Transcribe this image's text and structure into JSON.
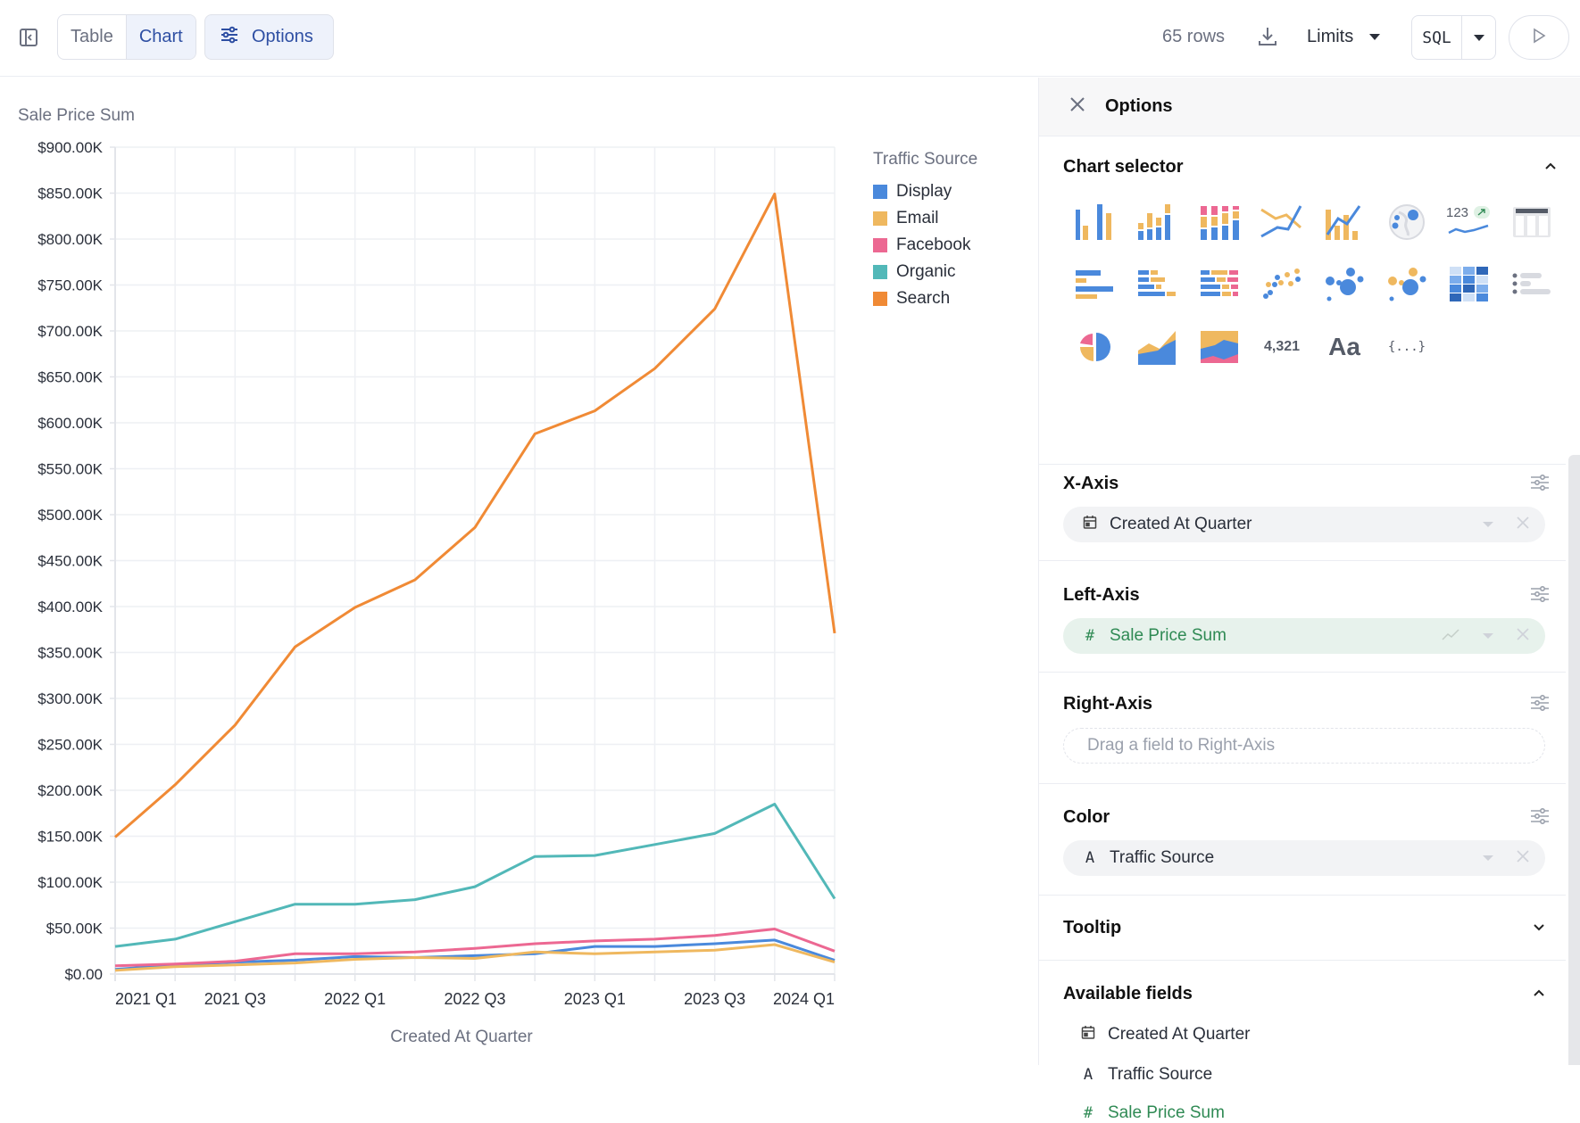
{
  "toolbar": {
    "view_tabs": [
      "Table",
      "Chart"
    ],
    "active_view": "Chart",
    "options_label": "Options",
    "row_count": "65 rows",
    "limits_label": "Limits",
    "sql_label": "SQL",
    "icons": {
      "sidebar": "sidebar-collapse-icon",
      "options": "sliders-icon",
      "download": "download-icon",
      "run": "play-icon"
    }
  },
  "legend": {
    "title": "Traffic Source",
    "items": [
      {
        "label": "Display",
        "color": "#4a89dc"
      },
      {
        "label": "Email",
        "color": "#efb85f"
      },
      {
        "label": "Facebook",
        "color": "#ec6892"
      },
      {
        "label": "Organic",
        "color": "#52b8b8"
      },
      {
        "label": "Search",
        "color": "#f08a35"
      }
    ]
  },
  "chart_data": {
    "type": "line",
    "title": "",
    "xlabel": "Created At Quarter",
    "ylabel": "Sale Price Sum",
    "x": [
      "2021 Q1",
      "2021 Q2",
      "2021 Q3",
      "2021 Q4",
      "2022 Q1",
      "2022 Q2",
      "2022 Q3",
      "2022 Q4",
      "2023 Q1",
      "2023 Q2",
      "2023 Q3",
      "2023 Q4",
      "2024 Q1"
    ],
    "x_tick_labels": [
      "2021 Q1",
      "2021 Q3",
      "2022 Q1",
      "2022 Q3",
      "2023 Q1",
      "2023 Q3",
      "2024 Q1"
    ],
    "y_tick_labels": [
      "$0.00",
      "$50.00K",
      "$100.00K",
      "$150.00K",
      "$200.00K",
      "$250.00K",
      "$300.00K",
      "$350.00K",
      "$400.00K",
      "$450.00K",
      "$500.00K",
      "$550.00K",
      "$600.00K",
      "$650.00K",
      "$700.00K",
      "$750.00K",
      "$800.00K",
      "$850.00K",
      "$900.00K"
    ],
    "ylim": [
      0,
      900000
    ],
    "grid": true,
    "legend_position": "right",
    "series": [
      {
        "name": "Display",
        "color": "#4a89dc",
        "values": [
          5000,
          10000,
          13000,
          15000,
          19000,
          18000,
          20000,
          22000,
          30000,
          30000,
          33000,
          37000,
          15000
        ]
      },
      {
        "name": "Email",
        "color": "#efb85f",
        "values": [
          4000,
          8000,
          10000,
          12000,
          16000,
          18000,
          17000,
          24000,
          22000,
          24000,
          26000,
          32000,
          13000
        ]
      },
      {
        "name": "Facebook",
        "color": "#ec6892",
        "values": [
          9000,
          11000,
          14000,
          22000,
          22000,
          24000,
          28000,
          33000,
          36000,
          38000,
          42000,
          49000,
          25000
        ]
      },
      {
        "name": "Organic",
        "color": "#52b8b8",
        "values": [
          30000,
          38000,
          57000,
          76000,
          76000,
          81000,
          95000,
          128000,
          129000,
          141000,
          153000,
          185000,
          82000
        ]
      },
      {
        "name": "Search",
        "color": "#f08a35",
        "values": [
          149000,
          206000,
          271000,
          356000,
          399000,
          429000,
          486000,
          588000,
          613000,
          659000,
          724000,
          849000,
          371000
        ]
      }
    ]
  },
  "options_panel": {
    "title": "Options",
    "chart_selector": {
      "title": "Chart selector",
      "number_label": "4,321",
      "text_label": "Aa",
      "json_label": "{...}",
      "kpi_label": "123"
    },
    "x_axis": {
      "title": "X-Axis",
      "field": "Created At Quarter"
    },
    "left_axis": {
      "title": "Left-Axis",
      "field": "Sale Price Sum"
    },
    "right_axis": {
      "title": "Right-Axis",
      "placeholder": "Drag a field to Right-Axis"
    },
    "color": {
      "title": "Color",
      "field": "Traffic Source"
    },
    "tooltip": {
      "title": "Tooltip"
    },
    "available_fields": {
      "title": "Available fields",
      "items": [
        {
          "label": "Created At Quarter",
          "type": "date"
        },
        {
          "label": "Traffic Source",
          "type": "string",
          "glyph": "A"
        },
        {
          "label": "Sale Price Sum",
          "type": "number",
          "glyph": "#"
        }
      ]
    }
  }
}
